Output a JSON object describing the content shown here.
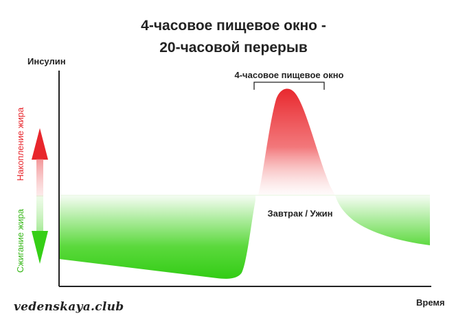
{
  "title": {
    "line1": "4-часовое пищевое окно -",
    "line2": "20-часовой перерыв"
  },
  "axes": {
    "y_label": "Инсулин",
    "x_label": "Время"
  },
  "legend": {
    "fat_storage": "Накопление жира",
    "fat_burning": "Сжигание жира"
  },
  "annotations": {
    "window_label": "4-часовое пищевое окно",
    "meal_label": "Завтрак / Ужин"
  },
  "watermark": "vedenskaya.club",
  "colors": {
    "storage_red": "#e8262c",
    "burning_green": "#3ed21a",
    "axis": "#222222"
  }
}
